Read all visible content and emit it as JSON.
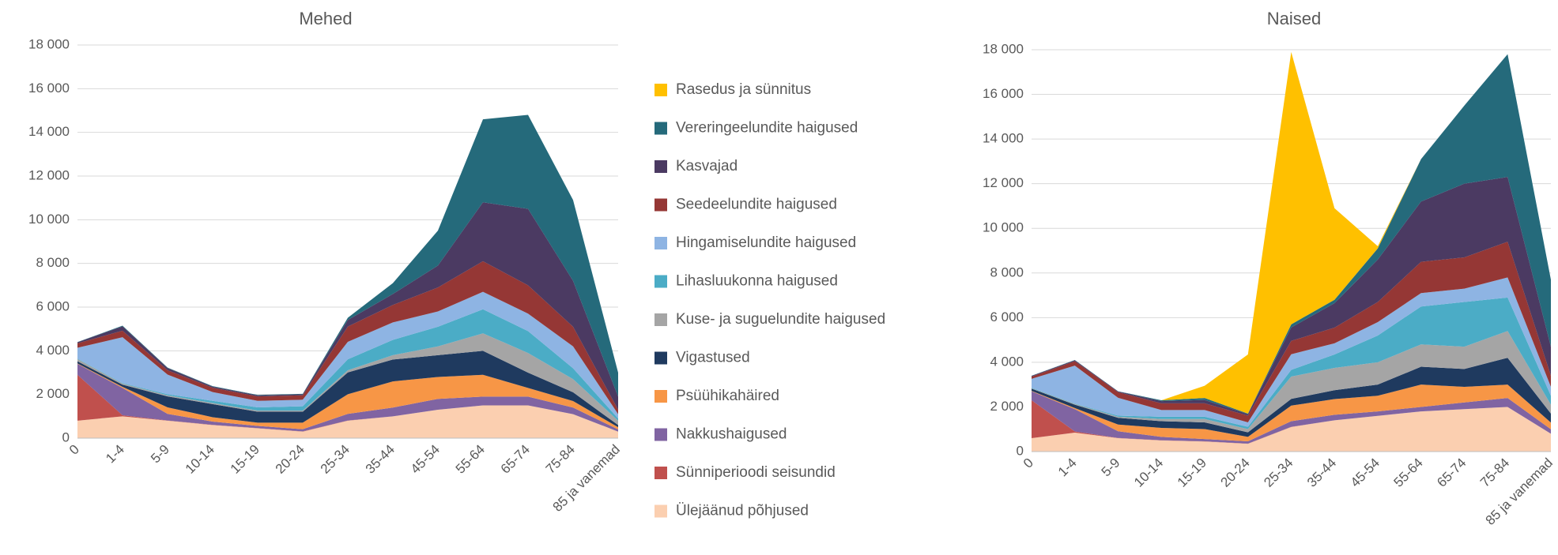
{
  "chart_data": [
    {
      "type": "stacked_area",
      "title": "Mehed",
      "categories": [
        "0",
        "1-4",
        "5-9",
        "10-14",
        "15-19",
        "20-24",
        "25-34",
        "35-44",
        "45-54",
        "55-64",
        "65-74",
        "75-84",
        "85 ja vanemad"
      ],
      "ylim": [
        0,
        18000
      ],
      "yticks": [
        0,
        {
          "value": 2000,
          "label": "2 000"
        },
        {
          "value": 4000,
          "label": "4 000"
        },
        {
          "value": 6000,
          "label": "6 000"
        },
        {
          "value": 8000,
          "label": "8 000"
        },
        {
          "value": 10000,
          "label": "10 000"
        },
        {
          "value": 12000,
          "label": "12 000"
        },
        {
          "value": 14000,
          "label": "14 000"
        },
        {
          "value": 16000,
          "label": "16 000"
        },
        {
          "value": 18000,
          "label": "18 000"
        }
      ],
      "grid": true,
      "series": [
        {
          "name": "Rasedus ja sünnitus",
          "color": "#ffc000",
          "values": [
            0,
            0,
            0,
            0,
            0,
            0,
            0,
            0,
            0,
            0,
            0,
            0,
            0
          ]
        },
        {
          "name": "Vereringeelundite haigused",
          "color": "#256a7b",
          "values": [
            10,
            30,
            20,
            20,
            20,
            20,
            100,
            500,
            1600,
            3800,
            4300,
            3700,
            1100
          ]
        },
        {
          "name": "Kasvajad",
          "color": "#4b3a62",
          "values": [
            50,
            200,
            100,
            50,
            50,
            50,
            300,
            500,
            1000,
            2700,
            3500,
            2100,
            600
          ]
        },
        {
          "name": "Seedeelundite haigused",
          "color": "#953735",
          "values": [
            200,
            300,
            200,
            200,
            200,
            200,
            700,
            800,
            1100,
            1400,
            1300,
            900,
            200
          ]
        },
        {
          "name": "Hingamiselundite haigused",
          "color": "#8eb4e3",
          "values": [
            500,
            2100,
            900,
            400,
            300,
            300,
            800,
            800,
            700,
            800,
            800,
            1000,
            200
          ]
        },
        {
          "name": "Lihasluukonna haigused",
          "color": "#4bacc6",
          "values": [
            20,
            20,
            50,
            100,
            150,
            200,
            500,
            700,
            900,
            1100,
            1000,
            500,
            100
          ]
        },
        {
          "name": "Kuse- ja suguelundite haigused",
          "color": "#a5a5a5",
          "values": [
            100,
            50,
            50,
            50,
            50,
            50,
            100,
            200,
            400,
            800,
            900,
            600,
            200
          ]
        },
        {
          "name": "Vigastused",
          "color": "#1f3a5f",
          "values": [
            100,
            100,
            500,
            600,
            500,
            500,
            1000,
            1000,
            1000,
            1100,
            700,
            400,
            100
          ]
        },
        {
          "name": "Psüühikahäired",
          "color": "#f79646",
          "values": [
            20,
            50,
            300,
            200,
            150,
            300,
            900,
            1200,
            1000,
            1000,
            400,
            300,
            100
          ]
        },
        {
          "name": "Nakkushaigused",
          "color": "#8064a2",
          "values": [
            500,
            1250,
            300,
            150,
            100,
            100,
            300,
            400,
            500,
            400,
            400,
            300,
            100
          ]
        },
        {
          "name": "Sünniperioodi seisundid",
          "color": "#c0504d",
          "values": [
            2100,
            50,
            10,
            10,
            10,
            10,
            10,
            0,
            0,
            0,
            0,
            0,
            0
          ]
        },
        {
          "name": "Ülejäänud põhjused",
          "color": "#fbcfb0",
          "values": [
            800,
            1000,
            800,
            600,
            450,
            300,
            800,
            1000,
            1300,
            1500,
            1500,
            1100,
            300
          ]
        }
      ]
    },
    {
      "type": "stacked_area",
      "title": "Naised",
      "categories": [
        "0",
        "1-4",
        "5-9",
        "10-14",
        "15-19",
        "20-24",
        "25-34",
        "35-44",
        "45-54",
        "55-64",
        "65-74",
        "75-84",
        "85 ja vanemad"
      ],
      "ylim": [
        0,
        18000
      ],
      "yticks": [
        0,
        {
          "value": 2000,
          "label": "2 000"
        },
        {
          "value": 4000,
          "label": "4 000"
        },
        {
          "value": 6000,
          "label": "6 000"
        },
        {
          "value": 8000,
          "label": "8 000"
        },
        {
          "value": 10000,
          "label": "10 000"
        },
        {
          "value": 12000,
          "label": "12 000"
        },
        {
          "value": 14000,
          "label": "14 000"
        },
        {
          "value": 16000,
          "label": "16 000"
        },
        {
          "value": 18000,
          "label": "18 000"
        }
      ],
      "grid": true,
      "series": [
        {
          "values": [
            0,
            0,
            0,
            0,
            550,
            2650,
            12200,
            4100,
            100,
            0,
            0,
            0,
            0
          ]
        },
        {
          "values": [
            10,
            10,
            10,
            40,
            90,
            20,
            140,
            150,
            500,
            1900,
            3500,
            5500,
            3000
          ]
        },
        {
          "values": [
            30,
            40,
            30,
            100,
            150,
            70,
            600,
            1100,
            1900,
            2700,
            3300,
            2900,
            1300
          ]
        },
        {
          "values": [
            100,
            200,
            250,
            300,
            300,
            300,
            600,
            700,
            900,
            1400,
            1400,
            1600,
            500
          ]
        },
        {
          "values": [
            400,
            1700,
            800,
            300,
            300,
            200,
            700,
            500,
            600,
            600,
            600,
            900,
            400
          ]
        },
        {
          "values": [
            20,
            20,
            50,
            100,
            100,
            100,
            300,
            600,
            1200,
            1700,
            2000,
            1500,
            400
          ]
        },
        {
          "values": [
            20,
            30,
            50,
            100,
            150,
            150,
            1000,
            1000,
            1000,
            1000,
            1000,
            1200,
            400
          ]
        },
        {
          "values": [
            100,
            150,
            300,
            300,
            300,
            200,
            300,
            400,
            500,
            800,
            800,
            1200,
            400
          ]
        },
        {
          "values": [
            20,
            50,
            300,
            400,
            450,
            200,
            700,
            700,
            700,
            1000,
            700,
            600,
            300
          ]
        },
        {
          "values": [
            400,
            1000,
            300,
            150,
            100,
            100,
            250,
            250,
            200,
            200,
            300,
            400,
            200
          ]
        },
        {
          "values": [
            1700,
            50,
            10,
            10,
            10,
            10,
            10,
            0,
            0,
            0,
            0,
            0,
            0
          ]
        },
        {
          "values": [
            600,
            850,
            600,
            500,
            450,
            350,
            1100,
            1400,
            1600,
            1800,
            1900,
            2000,
            800
          ]
        }
      ]
    }
  ]
}
